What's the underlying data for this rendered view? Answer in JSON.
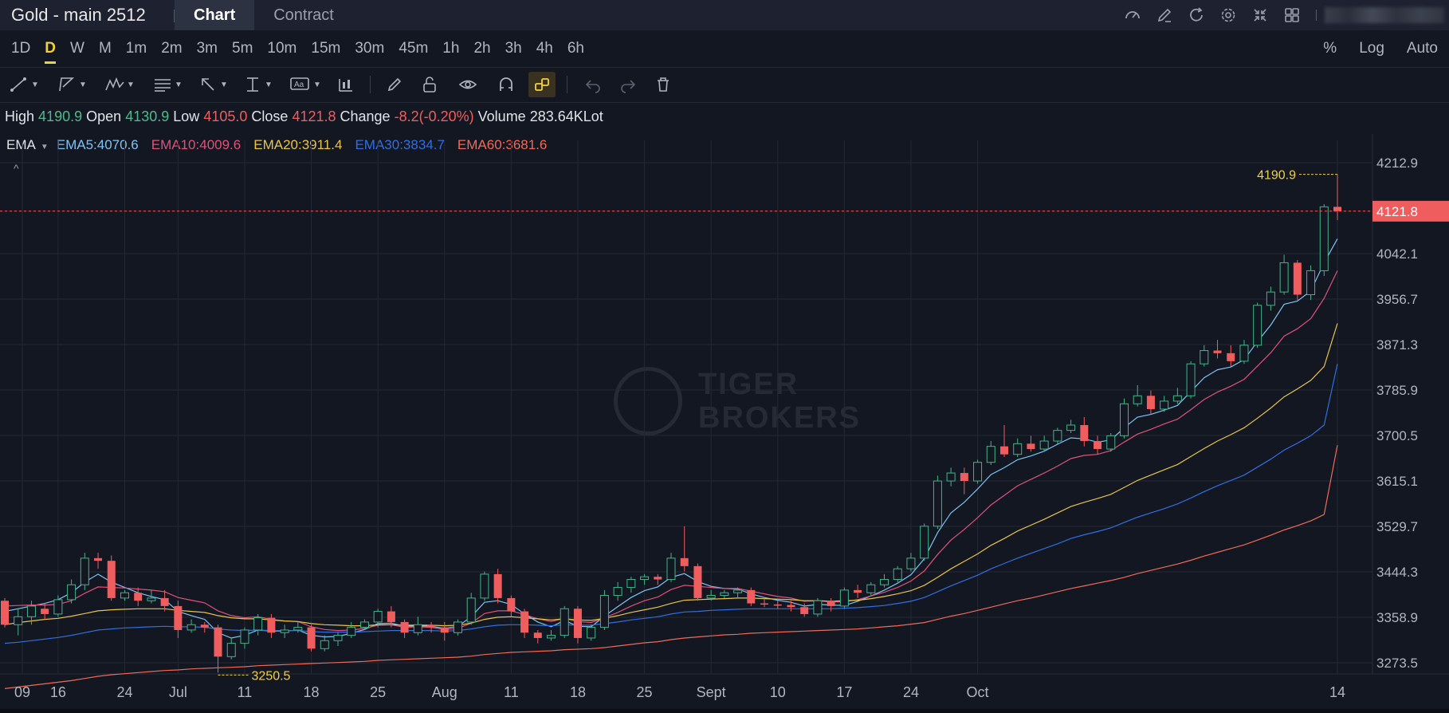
{
  "header": {
    "title": "Gold - main 2512",
    "tabs": [
      {
        "label": "Chart",
        "active": true
      },
      {
        "label": "Contract",
        "active": false
      }
    ],
    "icons": [
      "gauge-icon",
      "edit-icon",
      "refresh-icon",
      "settings-icon",
      "compress-icon",
      "layout-grid-icon"
    ]
  },
  "periods": [
    "1D",
    "D",
    "W",
    "M",
    "1m",
    "2m",
    "3m",
    "5m",
    "10m",
    "15m",
    "30m",
    "45m",
    "1h",
    "2h",
    "3h",
    "4h",
    "6h"
  ],
  "active_period": "D",
  "scale_options": [
    "%",
    "Log",
    "Auto"
  ],
  "drawing_tools": [
    "trend-line-icon",
    "polyline-icon",
    "pattern-icon",
    "fib-icon",
    "arrow-icon",
    "measure-icon",
    "text-icon",
    "indicator-icon",
    "pencil-icon",
    "lock-icon",
    "eye-icon",
    "magnet-icon",
    "link-icon",
    "undo-icon",
    "redo-icon",
    "trash-icon"
  ],
  "ohlc": {
    "high_label": "High",
    "high": "4190.9",
    "open_label": "Open",
    "open": "4130.9",
    "low_label": "Low",
    "low": "4105.0",
    "close_label": "Close",
    "close": "4121.8",
    "change_label": "Change",
    "change": "-8.2(-0.20%)",
    "volume_label": "Volume",
    "volume": "283.64KLot"
  },
  "ema": {
    "label": "EMA",
    "values": [
      {
        "text": "EMA5:4070.6",
        "color": "#7cc4f4"
      },
      {
        "text": "EMA10:4009.6",
        "color": "#e0517a"
      },
      {
        "text": "EMA20:3911.4",
        "color": "#e8c547"
      },
      {
        "text": "EMA30:3834.7",
        "color": "#2f6fe0"
      },
      {
        "text": "EMA60:3681.6",
        "color": "#f06a55"
      }
    ]
  },
  "watermark": {
    "line1": "TIGER",
    "line2": "BROKERS"
  },
  "colors": {
    "up": "#3fb68b",
    "down": "#f05d5e",
    "grid": "#242833",
    "background": "#131722",
    "accent": "#f2d13a"
  },
  "chart_data": {
    "type": "candlestick",
    "price_ticks": [
      "4212.9",
      "4121.8",
      "4042.1",
      "3956.7",
      "3871.3",
      "3785.9",
      "3700.5",
      "3615.1",
      "3529.7",
      "3444.3",
      "3358.9",
      "3273.5"
    ],
    "date_ticks": [
      "09",
      "16",
      "24",
      "Jul",
      "11",
      "18",
      "25",
      "Aug",
      "11",
      "18",
      "25",
      "Sept",
      "10",
      "17",
      "24",
      "Oct",
      "14"
    ],
    "last_price": "4121.8",
    "max_marker": "4190.9",
    "min_marker": "3250.5",
    "ylim": [
      3240,
      4240
    ],
    "candles": [
      [
        3390,
        3345,
        3395,
        3340
      ],
      [
        3345,
        3360,
        3375,
        3325
      ],
      [
        3360,
        3380,
        3390,
        3345
      ],
      [
        3375,
        3365,
        3385,
        3355
      ],
      [
        3365,
        3392,
        3400,
        3360
      ],
      [
        3392,
        3420,
        3430,
        3385
      ],
      [
        3420,
        3470,
        3480,
        3410
      ],
      [
        3470,
        3465,
        3480,
        3450
      ],
      [
        3465,
        3395,
        3475,
        3390
      ],
      [
        3395,
        3405,
        3410,
        3390
      ],
      [
        3405,
        3390,
        3415,
        3380
      ],
      [
        3390,
        3395,
        3410,
        3385
      ],
      [
        3395,
        3380,
        3410,
        3370
      ],
      [
        3380,
        3335,
        3390,
        3320
      ],
      [
        3335,
        3345,
        3355,
        3330
      ],
      [
        3345,
        3340,
        3350,
        3330
      ],
      [
        3340,
        3285,
        3345,
        3255
      ],
      [
        3285,
        3310,
        3320,
        3280
      ],
      [
        3310,
        3335,
        3340,
        3300
      ],
      [
        3335,
        3358,
        3365,
        3325
      ],
      [
        3358,
        3330,
        3365,
        3320
      ],
      [
        3330,
        3335,
        3345,
        3320
      ],
      [
        3335,
        3340,
        3350,
        3330
      ],
      [
        3340,
        3300,
        3345,
        3295
      ],
      [
        3300,
        3315,
        3325,
        3295
      ],
      [
        3315,
        3325,
        3330,
        3305
      ],
      [
        3325,
        3340,
        3350,
        3320
      ],
      [
        3340,
        3350,
        3355,
        3335
      ],
      [
        3350,
        3370,
        3375,
        3340
      ],
      [
        3370,
        3350,
        3380,
        3340
      ],
      [
        3350,
        3330,
        3355,
        3320
      ],
      [
        3330,
        3345,
        3360,
        3325
      ],
      [
        3345,
        3340,
        3350,
        3330
      ],
      [
        3340,
        3330,
        3350,
        3315
      ],
      [
        3330,
        3350,
        3355,
        3325
      ],
      [
        3350,
        3395,
        3405,
        3345
      ],
      [
        3395,
        3440,
        3445,
        3390
      ],
      [
        3440,
        3395,
        3450,
        3385
      ],
      [
        3395,
        3370,
        3400,
        3360
      ],
      [
        3370,
        3330,
        3375,
        3320
      ],
      [
        3330,
        3320,
        3335,
        3310
      ],
      [
        3320,
        3325,
        3335,
        3315
      ],
      [
        3325,
        3375,
        3380,
        3320
      ],
      [
        3375,
        3320,
        3380,
        3310
      ],
      [
        3320,
        3340,
        3345,
        3315
      ],
      [
        3340,
        3400,
        3410,
        3335
      ],
      [
        3400,
        3415,
        3425,
        3390
      ],
      [
        3415,
        3430,
        3435,
        3405
      ],
      [
        3430,
        3435,
        3440,
        3420
      ],
      [
        3435,
        3430,
        3440,
        3420
      ],
      [
        3430,
        3470,
        3480,
        3425
      ],
      [
        3470,
        3455,
        3530,
        3445
      ],
      [
        3455,
        3395,
        3460,
        3390
      ],
      [
        3395,
        3400,
        3410,
        3390
      ],
      [
        3400,
        3405,
        3410,
        3395
      ],
      [
        3405,
        3410,
        3415,
        3395
      ],
      [
        3410,
        3385,
        3415,
        3380
      ],
      [
        3385,
        3383,
        3395,
        3378
      ],
      [
        3383,
        3382,
        3390,
        3375
      ],
      [
        3382,
        3378,
        3390,
        3370
      ],
      [
        3378,
        3365,
        3385,
        3360
      ],
      [
        3365,
        3390,
        3395,
        3360
      ],
      [
        3390,
        3380,
        3395,
        3370
      ],
      [
        3380,
        3410,
        3415,
        3375
      ],
      [
        3410,
        3405,
        3420,
        3395
      ],
      [
        3405,
        3420,
        3425,
        3400
      ],
      [
        3420,
        3430,
        3440,
        3415
      ],
      [
        3430,
        3450,
        3455,
        3425
      ],
      [
        3450,
        3470,
        3480,
        3445
      ],
      [
        3470,
        3530,
        3535,
        3465
      ],
      [
        3530,
        3615,
        3625,
        3525
      ],
      [
        3615,
        3630,
        3640,
        3605
      ],
      [
        3630,
        3615,
        3640,
        3590
      ],
      [
        3615,
        3650,
        3655,
        3610
      ],
      [
        3650,
        3680,
        3690,
        3645
      ],
      [
        3680,
        3665,
        3720,
        3660
      ],
      [
        3665,
        3685,
        3695,
        3660
      ],
      [
        3685,
        3675,
        3700,
        3670
      ],
      [
        3675,
        3690,
        3700,
        3670
      ],
      [
        3690,
        3710,
        3715,
        3685
      ],
      [
        3710,
        3720,
        3730,
        3705
      ],
      [
        3720,
        3690,
        3735,
        3680
      ],
      [
        3690,
        3675,
        3700,
        3665
      ],
      [
        3675,
        3700,
        3705,
        3670
      ],
      [
        3700,
        3760,
        3770,
        3695
      ],
      [
        3760,
        3775,
        3795,
        3755
      ],
      [
        3775,
        3750,
        3785,
        3740
      ],
      [
        3750,
        3765,
        3775,
        3745
      ],
      [
        3765,
        3775,
        3790,
        3760
      ],
      [
        3775,
        3835,
        3840,
        3770
      ],
      [
        3835,
        3860,
        3870,
        3830
      ],
      [
        3860,
        3855,
        3880,
        3845
      ],
      [
        3855,
        3840,
        3870,
        3830
      ],
      [
        3840,
        3870,
        3880,
        3835
      ],
      [
        3870,
        3945,
        3950,
        3865
      ],
      [
        3945,
        3970,
        3980,
        3935
      ],
      [
        3970,
        4025,
        4040,
        3965
      ],
      [
        4025,
        3965,
        4030,
        3955
      ],
      [
        3965,
        4010,
        4020,
        3955
      ],
      [
        4010,
        4130,
        4135,
        4000
      ],
      [
        4130,
        4122,
        4191,
        4105
      ]
    ],
    "ema_series": [
      {
        "name": "EMA5",
        "color": "#7cc4f4",
        "values": [
          3370,
          3375,
          3380,
          3385,
          3392,
          3405,
          3425,
          3440,
          3425,
          3415,
          3405,
          3398,
          3392,
          3370,
          3362,
          3355,
          3330,
          3320,
          3325,
          3335,
          3333,
          3333,
          3335,
          3325,
          3322,
          3323,
          3329,
          3336,
          3347,
          3348,
          3342,
          3343,
          3342,
          3338,
          3342,
          3360,
          3387,
          3390,
          3383,
          3365,
          3350,
          3341,
          3353,
          3342,
          3341,
          3361,
          3379,
          3396,
          3409,
          3416,
          3434,
          3441,
          3426,
          3417,
          3413,
          3412,
          3403,
          3396,
          3391,
          3387,
          3380,
          3383,
          3382,
          3381,
          3389,
          3399,
          3410,
          3423,
          3439,
          3469,
          3518,
          3555,
          3575,
          3600,
          3627,
          3640,
          3655,
          3662,
          3671,
          3684,
          3696,
          3694,
          3688,
          3692,
          3715,
          3735,
          3740,
          3748,
          3757,
          3783,
          3809,
          3824,
          3829,
          3843,
          3877,
          3908,
          3947,
          3953,
          3972,
          4025,
          4070
        ]
      },
      {
        "name": "EMA10",
        "color": "#e0517a",
        "values": [
          3380,
          3381,
          3382,
          3382,
          3383,
          3390,
          3404,
          3416,
          3415,
          3414,
          3412,
          3410,
          3407,
          3396,
          3391,
          3386,
          3371,
          3362,
          3358,
          3360,
          3355,
          3352,
          3351,
          3341,
          3336,
          3334,
          3335,
          3338,
          3344,
          3345,
          3340,
          3341,
          3340,
          3336,
          3338,
          3348,
          3366,
          3371,
          3371,
          3364,
          3356,
          3351,
          3357,
          3351,
          3349,
          3358,
          3368,
          3380,
          3390,
          3397,
          3411,
          3419,
          3417,
          3415,
          3413,
          3413,
          3408,
          3403,
          3398,
          3395,
          3389,
          3390,
          3388,
          3388,
          3392,
          3399,
          3406,
          3415,
          3427,
          3446,
          3477,
          3504,
          3524,
          3546,
          3570,
          3588,
          3606,
          3618,
          3630,
          3643,
          3657,
          3663,
          3665,
          3672,
          3688,
          3703,
          3712,
          3722,
          3731,
          3749,
          3768,
          3782,
          3793,
          3806,
          3831,
          3856,
          3887,
          3901,
          3920,
          3958,
          4010
        ]
      },
      {
        "name": "EMA20",
        "color": "#e8c547",
        "values": [
          3345,
          3349,
          3352,
          3355,
          3357,
          3361,
          3366,
          3371,
          3373,
          3374,
          3375,
          3375,
          3375,
          3372,
          3370,
          3368,
          3362,
          3358,
          3356,
          3356,
          3354,
          3352,
          3351,
          3347,
          3345,
          3344,
          3343,
          3343,
          3345,
          3345,
          3344,
          3344,
          3344,
          3343,
          3344,
          3348,
          3355,
          3359,
          3360,
          3358,
          3356,
          3354,
          3356,
          3354,
          3353,
          3357,
          3362,
          3368,
          3373,
          3378,
          3385,
          3391,
          3392,
          3393,
          3394,
          3395,
          3395,
          3394,
          3393,
          3392,
          3390,
          3390,
          3389,
          3390,
          3391,
          3394,
          3398,
          3403,
          3409,
          3419,
          3434,
          3450,
          3464,
          3478,
          3494,
          3507,
          3521,
          3532,
          3543,
          3555,
          3567,
          3575,
          3582,
          3590,
          3603,
          3616,
          3626,
          3636,
          3646,
          3661,
          3676,
          3690,
          3702,
          3715,
          3733,
          3752,
          3773,
          3788,
          3804,
          3830,
          3911
        ]
      },
      {
        "name": "EMA30",
        "color": "#2f6fe0",
        "values": [
          3310,
          3312,
          3315,
          3318,
          3321,
          3325,
          3330,
          3335,
          3337,
          3339,
          3340,
          3341,
          3342,
          3341,
          3341,
          3340,
          3337,
          3335,
          3334,
          3335,
          3334,
          3334,
          3334,
          3332,
          3331,
          3331,
          3331,
          3332,
          3333,
          3334,
          3334,
          3334,
          3334,
          3333,
          3334,
          3337,
          3341,
          3344,
          3345,
          3345,
          3344,
          3343,
          3345,
          3344,
          3344,
          3347,
          3350,
          3354,
          3357,
          3360,
          3365,
          3369,
          3370,
          3372,
          3373,
          3374,
          3375,
          3375,
          3375,
          3375,
          3375,
          3375,
          3375,
          3376,
          3377,
          3379,
          3381,
          3385,
          3389,
          3396,
          3407,
          3418,
          3428,
          3438,
          3450,
          3460,
          3470,
          3479,
          3488,
          3497,
          3507,
          3514,
          3520,
          3527,
          3537,
          3547,
          3555,
          3563,
          3572,
          3583,
          3595,
          3606,
          3616,
          3626,
          3641,
          3656,
          3673,
          3686,
          3700,
          3720,
          3835
        ]
      },
      {
        "name": "EMA60",
        "color": "#f06a55",
        "values": [
          3225,
          3228,
          3231,
          3234,
          3237,
          3240,
          3244,
          3248,
          3251,
          3253,
          3255,
          3257,
          3259,
          3260,
          3262,
          3263,
          3264,
          3265,
          3266,
          3268,
          3269,
          3270,
          3271,
          3272,
          3273,
          3274,
          3275,
          3276,
          3278,
          3279,
          3280,
          3281,
          3282,
          3283,
          3284,
          3286,
          3289,
          3291,
          3293,
          3294,
          3295,
          3296,
          3298,
          3299,
          3300,
          3302,
          3305,
          3308,
          3311,
          3313,
          3317,
          3320,
          3322,
          3324,
          3326,
          3327,
          3329,
          3330,
          3331,
          3332,
          3333,
          3334,
          3335,
          3336,
          3337,
          3339,
          3341,
          3343,
          3346,
          3349,
          3355,
          3361,
          3366,
          3372,
          3378,
          3384,
          3390,
          3395,
          3401,
          3407,
          3413,
          3418,
          3423,
          3428,
          3434,
          3441,
          3447,
          3453,
          3459,
          3466,
          3474,
          3481,
          3488,
          3495,
          3504,
          3513,
          3523,
          3531,
          3540,
          3552,
          3682
        ]
      }
    ]
  }
}
